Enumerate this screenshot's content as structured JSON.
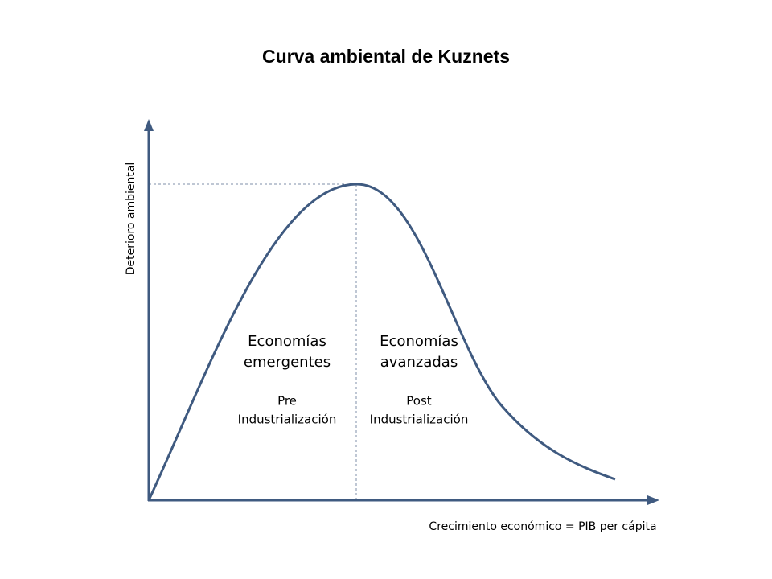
{
  "title": "Curva ambiental de Kuznets",
  "y_axis_label": "Deterioro ambiental",
  "x_axis_label": "Crecimiento económico = PIB per cápita",
  "regions": [
    {
      "heading": [
        "Economías",
        "emergentes"
      ],
      "stage": [
        "Pre",
        "Industrialización"
      ]
    },
    {
      "heading": [
        "Economías",
        "avanzadas"
      ],
      "stage": [
        "Post",
        "Industrialización"
      ]
    }
  ]
}
